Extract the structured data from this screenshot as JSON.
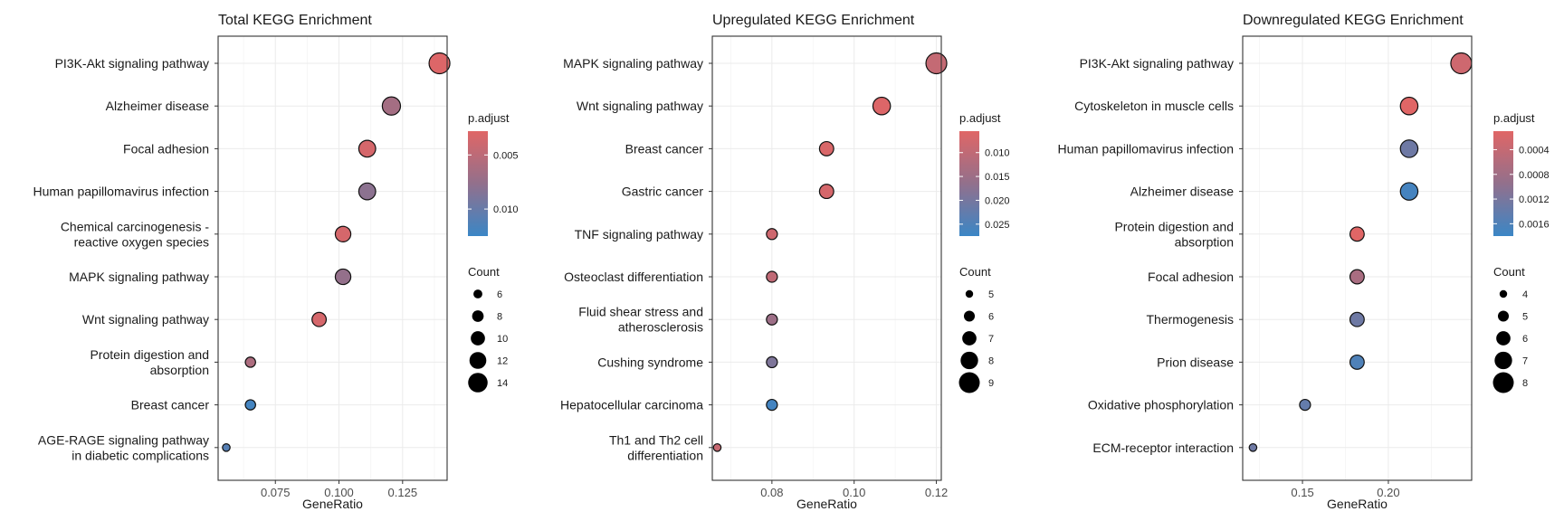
{
  "chart_data": [
    {
      "type": "scatter",
      "title": "Total KEGG Enrichment",
      "xlabel": "GeneRatio",
      "categories": [
        "PI3K-Akt signaling pathway",
        "Alzheimer disease",
        "Focal adhesion",
        "Human papillomavirus infection",
        "Chemical carcinogenesis -\nreactive oxygen species",
        "MAPK signaling pathway",
        "Wnt signaling pathway",
        "Protein digestion and\nabsorption",
        "Breast cancer",
        "AGE-RAGE signaling pathway\nin diabetic complications"
      ],
      "gene_ratio": [
        0.1395,
        0.1206,
        0.1111,
        0.1111,
        0.1016,
        0.1016,
        0.0922,
        0.0652,
        0.0652,
        0.0557
      ],
      "count": [
        15,
        13,
        12,
        12,
        11,
        11,
        10,
        7,
        7,
        5
      ],
      "p_adjust": [
        0.003,
        0.0065,
        0.0035,
        0.008,
        0.0035,
        0.0075,
        0.0035,
        0.006,
        0.012,
        0.011
      ],
      "xlim": [
        0.0525,
        0.1425
      ],
      "xticks": [
        "0.075",
        "0.100",
        "0.125"
      ],
      "xtick_values": [
        0.075,
        0.1,
        0.125
      ],
      "legend": {
        "color_title": "p.adjust",
        "color_range": [
          0.0028,
          0.0125
        ],
        "color_ticks": [
          "0.005",
          "0.010"
        ],
        "color_tick_values": [
          0.005,
          0.01
        ],
        "size_title": "Count",
        "size_ticks": [
          "6",
          "8",
          "10",
          "12",
          "14"
        ],
        "size_tick_values": [
          6,
          8,
          10,
          12,
          14
        ],
        "size_range": [
          5,
          15
        ]
      }
    },
    {
      "type": "scatter",
      "title": "Upregulated KEGG Enrichment",
      "xlabel": "GeneRatio",
      "categories": [
        "MAPK signaling pathway",
        "Wnt signaling pathway",
        "Breast cancer",
        "Gastric cancer",
        "TNF signaling pathway",
        "Osteoclast differentiation",
        "Fluid shear stress and\natherosclerosis",
        "Cushing syndrome",
        "Hepatocellular carcinoma",
        "Th1 and Th2 cell\ndifferentiation"
      ],
      "gene_ratio": [
        0.12,
        0.1067,
        0.0933,
        0.0933,
        0.08,
        0.08,
        0.08,
        0.08,
        0.08,
        0.0667
      ],
      "count": [
        9,
        8,
        7,
        7,
        6,
        6,
        6,
        6,
        6,
        5
      ],
      "p_adjust": [
        0.0095,
        0.006,
        0.0065,
        0.007,
        0.008,
        0.01,
        0.015,
        0.019,
        0.0265,
        0.009
      ],
      "xlim": [
        0.0655,
        0.1212
      ],
      "xticks": [
        "0.08",
        "0.10",
        "0.12"
      ],
      "xtick_values": [
        0.08,
        0.1,
        0.12
      ],
      "legend": {
        "color_title": "p.adjust",
        "color_range": [
          0.0055,
          0.0275
        ],
        "color_ticks": [
          "0.010",
          "0.015",
          "0.020",
          "0.025"
        ],
        "color_tick_values": [
          0.01,
          0.015,
          0.02,
          0.025
        ],
        "size_title": "Count",
        "size_ticks": [
          "5",
          "6",
          "7",
          "8",
          "9"
        ],
        "size_tick_values": [
          5,
          6,
          7,
          8,
          9
        ],
        "size_range": [
          5,
          9
        ]
      }
    },
    {
      "type": "scatter",
      "title": "Downregulated KEGG Enrichment",
      "xlabel": "GeneRatio",
      "categories": [
        "PI3K-Akt signaling pathway",
        "Cytoskeleton in muscle cells",
        "Human papillomavirus infection",
        "Alzheimer disease",
        "Protein digestion and\nabsorption",
        "Focal adhesion",
        "Thermogenesis",
        "Prion disease",
        "Oxidative phosphorylation",
        "ECM-receptor interaction"
      ],
      "gene_ratio": [
        0.2424,
        0.2121,
        0.2121,
        0.2121,
        0.1818,
        0.1818,
        0.1818,
        0.1818,
        0.1515,
        0.1212
      ],
      "count": [
        8,
        7,
        7,
        7,
        6,
        6,
        6,
        6,
        5,
        4
      ],
      "p_adjust": [
        0.0003,
        0.0001,
        0.0013,
        0.0017,
        0.0001,
        0.0007,
        0.0013,
        0.0016,
        0.0014,
        0.0013
      ],
      "xlim": [
        0.1152,
        0.2485
      ],
      "xticks": [
        "0.15",
        "0.20"
      ],
      "xtick_values": [
        0.15,
        0.2
      ],
      "legend": {
        "color_title": "p.adjust",
        "color_range": [
          0.0001,
          0.0018
        ],
        "color_ticks": [
          "0.0004",
          "0.0008",
          "0.0012",
          "0.0016"
        ],
        "color_tick_values": [
          0.0004,
          0.0008,
          0.0012,
          0.0016
        ],
        "size_title": "Count",
        "size_ticks": [
          "4",
          "5",
          "6",
          "7",
          "8"
        ],
        "size_tick_values": [
          4,
          5,
          6,
          7,
          8
        ],
        "size_range": [
          4,
          8
        ]
      }
    }
  ],
  "colors": {
    "low_p": "#e06666",
    "high_p": "#3b86c6",
    "point_stroke": "#111111",
    "legend_dot": "#000000"
  }
}
